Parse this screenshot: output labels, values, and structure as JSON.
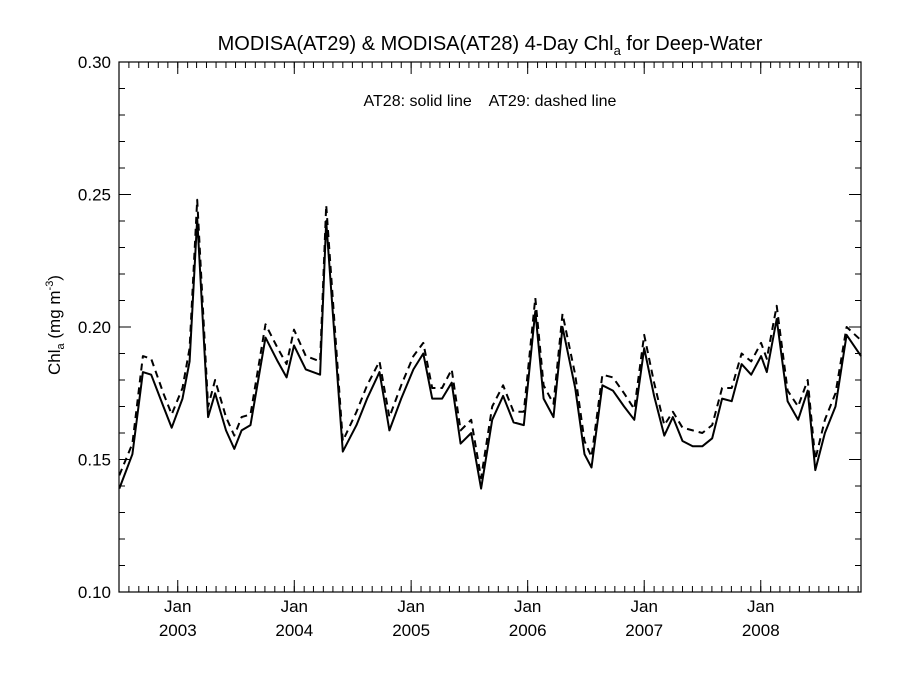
{
  "chart_data": {
    "type": "line",
    "title": {
      "main": "MODISA(AT29) & MODISA(AT28) 4-Day Chl",
      "sub": "a",
      "tail": " for Deep-Water"
    },
    "ylabel": {
      "main": "Chl",
      "sub": "a",
      "unit_pre": " (mg m",
      "sup": "-3",
      "unit_post": ")"
    },
    "annotation": "AT28: solid line    AT29: dashed line",
    "ylim": [
      0.1,
      0.3
    ],
    "yticks": [
      {
        "value": 0.1,
        "label": "0.10"
      },
      {
        "value": 0.15,
        "label": "0.15"
      },
      {
        "value": 0.2,
        "label": "0.20"
      },
      {
        "value": 0.25,
        "label": "0.25"
      },
      {
        "value": 0.3,
        "label": "0.30"
      }
    ],
    "y_minor_step": 0.01,
    "xlim": [
      "2002-07-01",
      "2008-11-10"
    ],
    "xticks": [
      {
        "date": "2003-01-01",
        "month": "Jan",
        "year": "2003"
      },
      {
        "date": "2004-01-01",
        "month": "Jan",
        "year": "2004"
      },
      {
        "date": "2005-01-01",
        "month": "Jan",
        "year": "2005"
      },
      {
        "date": "2006-01-01",
        "month": "Jan",
        "year": "2006"
      },
      {
        "date": "2007-01-01",
        "month": "Jan",
        "year": "2007"
      },
      {
        "date": "2008-01-01",
        "month": "Jan",
        "year": "2008"
      }
    ],
    "series": [
      {
        "name": "AT28",
        "style": "solid",
        "color": "#000000",
        "points": [
          [
            "2002-07-02",
            0.139
          ],
          [
            "2002-08-12",
            0.152
          ],
          [
            "2002-09-14",
            0.183
          ],
          [
            "2002-10-10",
            0.182
          ],
          [
            "2002-11-17",
            0.17
          ],
          [
            "2002-12-13",
            0.162
          ],
          [
            "2003-01-16",
            0.173
          ],
          [
            "2003-02-07",
            0.187
          ],
          [
            "2003-03-03",
            0.241
          ],
          [
            "2003-04-06",
            0.166
          ],
          [
            "2003-04-28",
            0.175
          ],
          [
            "2003-06-01",
            0.161
          ],
          [
            "2003-06-27",
            0.154
          ],
          [
            "2003-07-20",
            0.161
          ],
          [
            "2003-08-17",
            0.163
          ],
          [
            "2003-10-03",
            0.196
          ],
          [
            "2003-11-10",
            0.187
          ],
          [
            "2003-12-08",
            0.181
          ],
          [
            "2003-12-31",
            0.193
          ],
          [
            "2004-02-06",
            0.184
          ],
          [
            "2004-03-22",
            0.182
          ],
          [
            "2004-04-10",
            0.24
          ],
          [
            "2004-06-01",
            0.153
          ],
          [
            "2004-07-14",
            0.163
          ],
          [
            "2004-08-16",
            0.173
          ],
          [
            "2004-09-24",
            0.183
          ],
          [
            "2004-10-25",
            0.161
          ],
          [
            "2004-12-01",
            0.173
          ],
          [
            "2005-01-08",
            0.184
          ],
          [
            "2005-02-08",
            0.19
          ],
          [
            "2005-03-08",
            0.173
          ],
          [
            "2005-04-08",
            0.173
          ],
          [
            "2005-05-08",
            0.179
          ],
          [
            "2005-06-05",
            0.156
          ],
          [
            "2005-07-08",
            0.16
          ],
          [
            "2005-08-08",
            0.139
          ],
          [
            "2005-09-12",
            0.165
          ],
          [
            "2005-10-16",
            0.174
          ],
          [
            "2005-11-18",
            0.164
          ],
          [
            "2005-12-20",
            0.163
          ],
          [
            "2006-01-25",
            0.206
          ],
          [
            "2006-02-20",
            0.173
          ],
          [
            "2006-03-23",
            0.166
          ],
          [
            "2006-04-20",
            0.2
          ],
          [
            "2006-05-30",
            0.177
          ],
          [
            "2006-06-28",
            0.152
          ],
          [
            "2006-07-20",
            0.147
          ],
          [
            "2006-08-23",
            0.178
          ],
          [
            "2006-09-25",
            0.176
          ],
          [
            "2006-10-30",
            0.17
          ],
          [
            "2006-12-01",
            0.165
          ],
          [
            "2007-01-01",
            0.192
          ],
          [
            "2007-02-01",
            0.174
          ],
          [
            "2007-03-05",
            0.159
          ],
          [
            "2007-04-01",
            0.166
          ],
          [
            "2007-05-01",
            0.157
          ],
          [
            "2007-06-02",
            0.155
          ],
          [
            "2007-07-02",
            0.155
          ],
          [
            "2007-08-02",
            0.158
          ],
          [
            "2007-09-02",
            0.173
          ],
          [
            "2007-10-02",
            0.172
          ],
          [
            "2007-11-02",
            0.186
          ],
          [
            "2007-12-02",
            0.182
          ],
          [
            "2008-01-02",
            0.189
          ],
          [
            "2008-01-20",
            0.183
          ],
          [
            "2008-02-20",
            0.203
          ],
          [
            "2008-03-25",
            0.172
          ],
          [
            "2008-04-27",
            0.165
          ],
          [
            "2008-05-27",
            0.176
          ],
          [
            "2008-06-20",
            0.146
          ],
          [
            "2008-07-20",
            0.16
          ],
          [
            "2008-08-22",
            0.17
          ],
          [
            "2008-09-26",
            0.197
          ],
          [
            "2008-11-10",
            0.189
          ]
        ]
      },
      {
        "name": "AT29",
        "style": "dashed",
        "color": "#000000",
        "points": [
          [
            "2002-07-02",
            0.144
          ],
          [
            "2002-08-12",
            0.156
          ],
          [
            "2002-09-14",
            0.189
          ],
          [
            "2002-10-10",
            0.188
          ],
          [
            "2002-11-17",
            0.175
          ],
          [
            "2002-12-13",
            0.167
          ],
          [
            "2003-01-16",
            0.177
          ],
          [
            "2003-02-07",
            0.192
          ],
          [
            "2003-03-03",
            0.248
          ],
          [
            "2003-04-06",
            0.17
          ],
          [
            "2003-04-28",
            0.18
          ],
          [
            "2003-06-01",
            0.166
          ],
          [
            "2003-06-27",
            0.159
          ],
          [
            "2003-07-20",
            0.166
          ],
          [
            "2003-08-17",
            0.167
          ],
          [
            "2003-10-03",
            0.201
          ],
          [
            "2003-11-10",
            0.192
          ],
          [
            "2003-12-08",
            0.186
          ],
          [
            "2003-12-31",
            0.199
          ],
          [
            "2004-02-06",
            0.189
          ],
          [
            "2004-03-22",
            0.187
          ],
          [
            "2004-04-10",
            0.246
          ],
          [
            "2004-06-01",
            0.157
          ],
          [
            "2004-07-14",
            0.168
          ],
          [
            "2004-08-16",
            0.178
          ],
          [
            "2004-09-24",
            0.187
          ],
          [
            "2004-10-25",
            0.166
          ],
          [
            "2004-12-01",
            0.178
          ],
          [
            "2005-01-08",
            0.189
          ],
          [
            "2005-02-08",
            0.194
          ],
          [
            "2005-03-08",
            0.177
          ],
          [
            "2005-04-08",
            0.177
          ],
          [
            "2005-05-08",
            0.184
          ],
          [
            "2005-06-05",
            0.161
          ],
          [
            "2005-07-08",
            0.165
          ],
          [
            "2005-08-08",
            0.143
          ],
          [
            "2005-09-12",
            0.17
          ],
          [
            "2005-10-16",
            0.178
          ],
          [
            "2005-11-18",
            0.168
          ],
          [
            "2005-12-20",
            0.168
          ],
          [
            "2006-01-25",
            0.211
          ],
          [
            "2006-02-20",
            0.178
          ],
          [
            "2006-03-23",
            0.171
          ],
          [
            "2006-04-20",
            0.205
          ],
          [
            "2006-05-30",
            0.182
          ],
          [
            "2006-06-28",
            0.157
          ],
          [
            "2006-07-20",
            0.151
          ],
          [
            "2006-08-23",
            0.182
          ],
          [
            "2006-09-25",
            0.181
          ],
          [
            "2006-10-30",
            0.175
          ],
          [
            "2006-12-01",
            0.169
          ],
          [
            "2007-01-01",
            0.197
          ],
          [
            "2007-02-01",
            0.179
          ],
          [
            "2007-03-05",
            0.163
          ],
          [
            "2007-04-01",
            0.168
          ],
          [
            "2007-05-01",
            0.162
          ],
          [
            "2007-06-02",
            0.161
          ],
          [
            "2007-07-02",
            0.16
          ],
          [
            "2007-08-02",
            0.163
          ],
          [
            "2007-09-02",
            0.177
          ],
          [
            "2007-10-02",
            0.177
          ],
          [
            "2007-11-02",
            0.19
          ],
          [
            "2007-12-02",
            0.187
          ],
          [
            "2008-01-02",
            0.194
          ],
          [
            "2008-01-20",
            0.188
          ],
          [
            "2008-02-20",
            0.208
          ],
          [
            "2008-03-25",
            0.176
          ],
          [
            "2008-04-27",
            0.17
          ],
          [
            "2008-05-27",
            0.18
          ],
          [
            "2008-06-20",
            0.15
          ],
          [
            "2008-07-20",
            0.165
          ],
          [
            "2008-08-22",
            0.175
          ],
          [
            "2008-09-26",
            0.2
          ],
          [
            "2008-11-10",
            0.195
          ]
        ]
      }
    ]
  }
}
